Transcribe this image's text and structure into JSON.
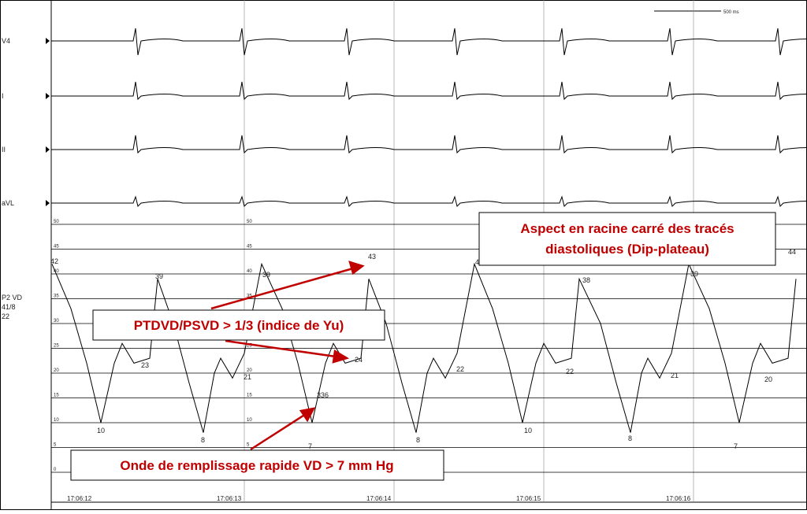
{
  "leads": [
    "V4",
    "I",
    "II",
    "aVL"
  ],
  "pressure": {
    "channel": "P2 VD",
    "summary": "41/8",
    "mean": "22",
    "ylim": [
      0,
      50
    ],
    "yticks": [
      0,
      5,
      10,
      15,
      20,
      25,
      30,
      35,
      40,
      45,
      50
    ],
    "point_labels": [
      "42",
      "39",
      "23",
      "10",
      "39",
      "21",
      "8",
      "43",
      "24",
      "336",
      "7",
      "4",
      "22",
      "8",
      "38",
      "22",
      "10",
      "39",
      "21",
      "8",
      "44",
      "20",
      "7"
    ]
  },
  "scale_bar": "500 ms",
  "times": [
    "17:06:12",
    "17:06:13",
    "17:06:14",
    "17:06:15",
    "17:06:16"
  ],
  "annotations": {
    "dip_plateau": [
      "Aspect en racine carré des tracés",
      "diastoliques (Dip-plateau)"
    ],
    "ratio": "PTDVD/PSVD > 1/3 (indice de Yu)",
    "filling": "Onde de remplissage rapide VD > 7 mm Hg"
  }
}
